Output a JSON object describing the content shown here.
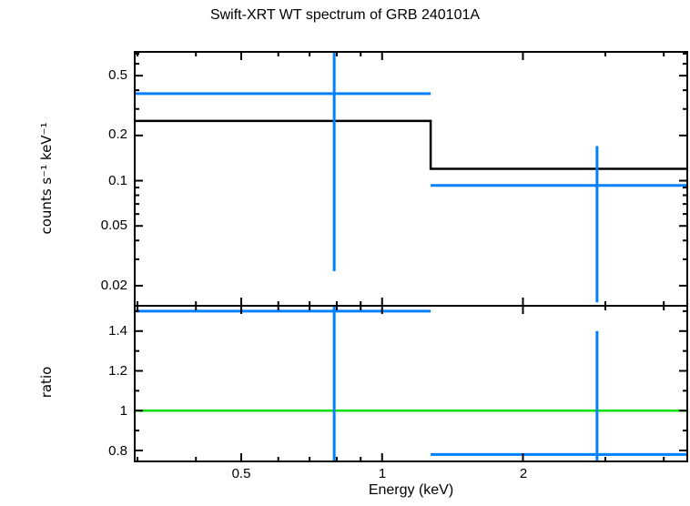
{
  "title": "Swift-XRT WT spectrum of GRB 240101A",
  "colors": {
    "data_blue": "#0080ff",
    "model_black": "#000000",
    "reference_green": "#00e300",
    "frame": "#000000"
  },
  "chart_data": {
    "type": "line",
    "title": "Swift-XRT WT spectrum of GRB 240101A",
    "xlabel": "Energy (keV)",
    "x_scale": "log",
    "x_range": [
      0.296,
      4.49
    ],
    "x_ticks": {
      "major": [
        {
          "v": 0.5,
          "label": "0.5"
        },
        {
          "v": 1,
          "label": "1"
        },
        {
          "v": 2,
          "label": "2"
        }
      ],
      "minor": [
        0.3,
        0.4,
        0.6,
        0.7,
        0.8,
        0.9,
        3,
        4
      ]
    },
    "panels": [
      {
        "name": "spectrum",
        "ylabel": "counts s⁻¹ keV⁻¹",
        "y_scale": "log",
        "y_range": [
          0.0147,
          0.72
        ],
        "y_ticks": {
          "major": [
            {
              "v": 0.5,
              "label": "0.5"
            },
            {
              "v": 0.2,
              "label": "0.2"
            },
            {
              "v": 0.1,
              "label": "0.1"
            },
            {
              "v": 0.05,
              "label": "0.05"
            },
            {
              "v": 0.02,
              "label": "0.02"
            }
          ],
          "minor": [
            0.7,
            0.6,
            0.4,
            0.3,
            0.09,
            0.08,
            0.07,
            0.06,
            0.04,
            0.03
          ]
        },
        "model": {
          "type": "step",
          "color": "model_black",
          "points": [
            [
              0.296,
              0.25
            ],
            [
              1.27,
              0.25
            ],
            [
              1.27,
              0.12
            ],
            [
              4.49,
              0.12
            ]
          ]
        },
        "points": [
          {
            "x": 0.79,
            "x_lo": 0.28,
            "x_hi": 1.27,
            "y": 0.38,
            "y_lo": 0.025,
            "y_hi": 0.95
          },
          {
            "x": 2.88,
            "x_lo": 1.27,
            "x_hi": 4.6,
            "y": 0.093,
            "y_lo": 0.0155,
            "y_hi": 0.17
          }
        ]
      },
      {
        "name": "ratio",
        "ylabel": "ratio",
        "y_scale": "linear",
        "y_range": [
          0.745,
          1.527
        ],
        "y_ticks": {
          "major": [
            {
              "v": 1.4,
              "label": "1.4"
            },
            {
              "v": 1.2,
              "label": "1.2"
            },
            {
              "v": 1,
              "label": "1"
            },
            {
              "v": 0.8,
              "label": "0.8"
            }
          ],
          "minor": [
            1.5,
            1.3,
            1.1,
            0.9
          ]
        },
        "reference_line": {
          "y": 1,
          "color": "reference_green"
        },
        "points": [
          {
            "x": 0.79,
            "x_lo": 0.28,
            "x_hi": 1.27,
            "y": 1.5,
            "y_lo": 0.6,
            "y_hi": 1.7
          },
          {
            "x": 2.88,
            "x_lo": 1.27,
            "x_hi": 4.6,
            "y": 0.78,
            "y_lo": 0.6,
            "y_hi": 1.4
          }
        ]
      }
    ]
  }
}
